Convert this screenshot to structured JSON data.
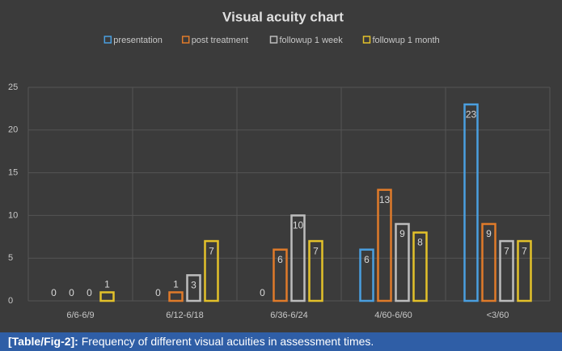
{
  "chart_data": {
    "type": "bar",
    "title": "Visual acuity chart",
    "categories": [
      "6/6-6/9",
      "6/12-6/18",
      "6/36-6/24",
      "4/60-6/60",
      "<3/60"
    ],
    "series": [
      {
        "name": "presentation",
        "color": "#4a9fe0",
        "values": [
          0,
          0,
          0,
          6,
          23
        ]
      },
      {
        "name": "post treatment",
        "color": "#e07b2a",
        "values": [
          0,
          1,
          6,
          13,
          9
        ]
      },
      {
        "name": "followup 1 week",
        "color": "#bdbdbd",
        "values": [
          0,
          3,
          10,
          9,
          7
        ]
      },
      {
        "name": "followup 1 month",
        "color": "#e3c12a",
        "values": [
          1,
          7,
          7,
          8,
          7
        ]
      }
    ],
    "ylim": [
      0,
      25
    ],
    "yticks": [
      0,
      5,
      10,
      15,
      20,
      25
    ],
    "grid": true,
    "legend": "top"
  },
  "caption": {
    "label": "[Table/Fig-2]:",
    "text": "Frequency of different visual acuities in assessment times."
  }
}
